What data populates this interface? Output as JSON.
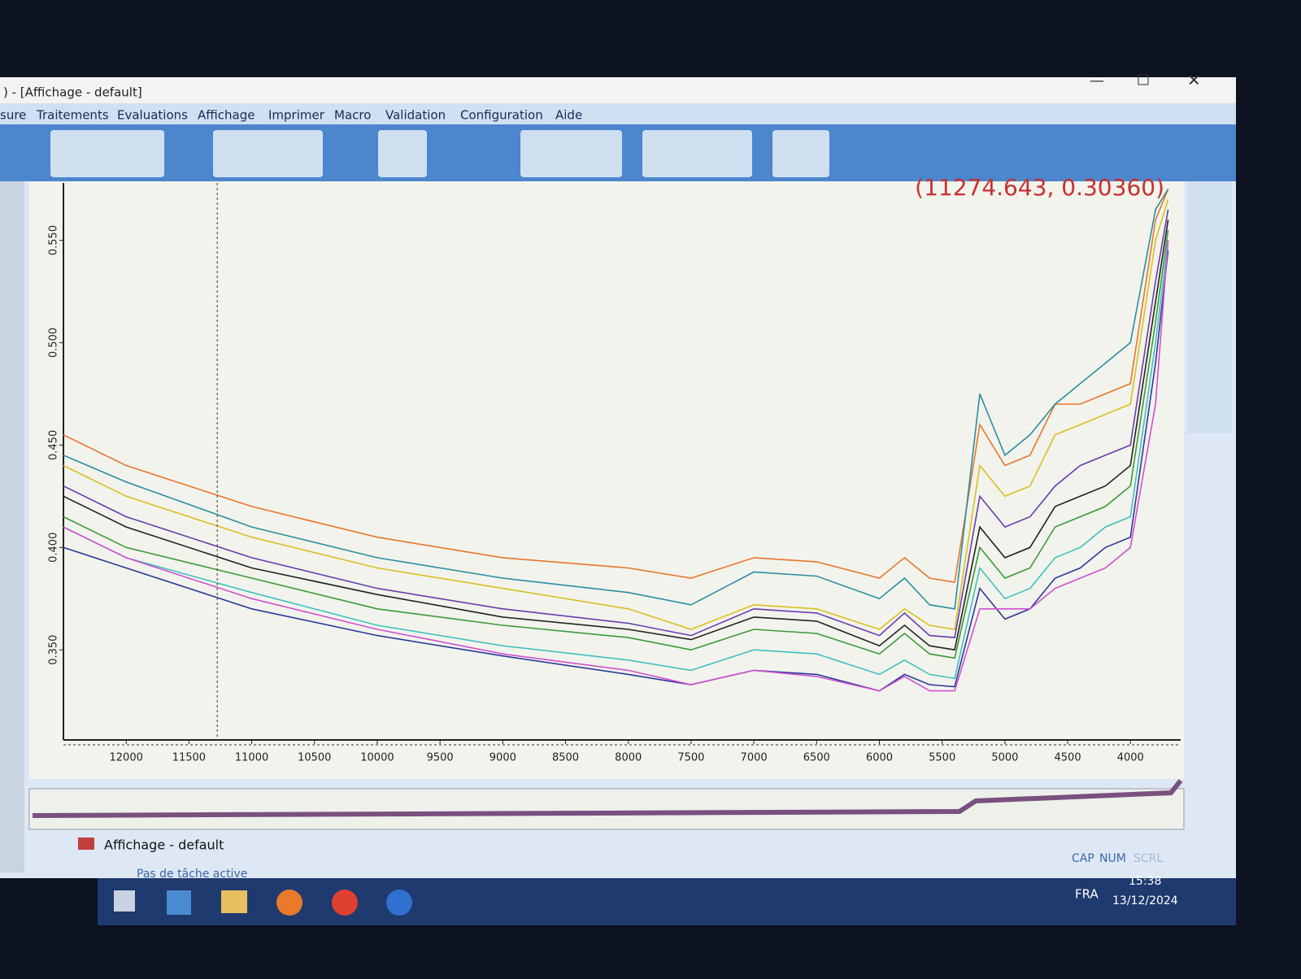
{
  "window": {
    "title": ") - [Affichage - default]"
  },
  "menu": [
    "sure",
    "Traitements",
    "Evaluations",
    "Affichage",
    "Imprimer",
    "Macro",
    "Validation",
    "Configuration",
    "Aide"
  ],
  "chart_data": {
    "type": "line",
    "readout": "(11274.643, 0.30360)",
    "cursor_x": 11274.643,
    "cursor_y": 0.3036,
    "x": [
      12500,
      12000,
      11000,
      10000,
      9000,
      8000,
      7500,
      7000,
      6500,
      6000,
      5800,
      5600,
      5400,
      5200,
      5000,
      4800,
      4600,
      4400,
      4200,
      4000,
      3800,
      3700
    ],
    "xlim": [
      12500,
      3600
    ],
    "xticks": [
      12000,
      11500,
      11000,
      10500,
      10000,
      9500,
      9000,
      8500,
      8000,
      7500,
      7000,
      6500,
      6000,
      5500,
      5000,
      4500,
      4000
    ],
    "ylim": [
      0.306,
      0.578
    ],
    "yticks": [
      {
        "value": 0.35,
        "label": "0.350"
      },
      {
        "value": 0.4,
        "label": "0.400"
      },
      {
        "value": 0.45,
        "label": "0.450"
      },
      {
        "value": 0.5,
        "label": "0.500"
      },
      {
        "value": 0.55,
        "label": "0.550"
      }
    ],
    "series": [
      {
        "color": "#e8762c",
        "values": [
          0.455,
          0.44,
          0.42,
          0.405,
          0.395,
          0.39,
          0.385,
          0.395,
          0.393,
          0.385,
          0.395,
          0.385,
          0.383,
          0.46,
          0.44,
          0.445,
          0.47,
          0.47,
          0.475,
          0.48,
          0.56,
          0.575
        ]
      },
      {
        "color": "#2a8fa0",
        "values": [
          0.445,
          0.432,
          0.41,
          0.395,
          0.385,
          0.378,
          0.372,
          0.388,
          0.386,
          0.375,
          0.385,
          0.372,
          0.37,
          0.475,
          0.445,
          0.455,
          0.47,
          0.48,
          0.49,
          0.5,
          0.565,
          0.575
        ]
      },
      {
        "color": "#d8c020",
        "values": [
          0.44,
          0.425,
          0.405,
          0.39,
          0.38,
          0.37,
          0.36,
          0.372,
          0.37,
          0.36,
          0.37,
          0.362,
          0.36,
          0.44,
          0.425,
          0.43,
          0.455,
          0.46,
          0.465,
          0.47,
          0.55,
          0.57
        ]
      },
      {
        "color": "#6a3cb0",
        "values": [
          0.43,
          0.415,
          0.395,
          0.38,
          0.37,
          0.363,
          0.357,
          0.37,
          0.368,
          0.357,
          0.368,
          0.357,
          0.356,
          0.425,
          0.41,
          0.415,
          0.43,
          0.44,
          0.445,
          0.45,
          0.53,
          0.565
        ]
      },
      {
        "color": "#222222",
        "values": [
          0.425,
          0.41,
          0.39,
          0.377,
          0.366,
          0.36,
          0.355,
          0.366,
          0.364,
          0.352,
          0.362,
          0.352,
          0.35,
          0.41,
          0.395,
          0.4,
          0.42,
          0.425,
          0.43,
          0.44,
          0.52,
          0.56
        ]
      },
      {
        "color": "#3a9a3a",
        "values": [
          0.415,
          0.4,
          0.385,
          0.37,
          0.362,
          0.356,
          0.35,
          0.36,
          0.358,
          0.348,
          0.358,
          0.348,
          0.346,
          0.4,
          0.385,
          0.39,
          0.41,
          0.415,
          0.42,
          0.43,
          0.51,
          0.555
        ]
      },
      {
        "color": "#40c0c0",
        "values": [
          0.41,
          0.395,
          0.378,
          0.362,
          0.352,
          0.345,
          0.34,
          0.35,
          0.348,
          0.338,
          0.345,
          0.338,
          0.336,
          0.39,
          0.375,
          0.38,
          0.395,
          0.4,
          0.41,
          0.415,
          0.5,
          0.55
        ]
      },
      {
        "color": "#2a3a9a",
        "values": [
          0.4,
          0.39,
          0.37,
          0.357,
          0.347,
          0.338,
          0.333,
          0.34,
          0.338,
          0.33,
          0.338,
          0.333,
          0.332,
          0.38,
          0.365,
          0.37,
          0.385,
          0.39,
          0.4,
          0.405,
          0.49,
          0.545
        ]
      },
      {
        "color": "#d050d0",
        "values": [
          0.41,
          0.395,
          0.375,
          0.36,
          0.348,
          0.34,
          0.333,
          0.34,
          0.337,
          0.33,
          0.337,
          0.33,
          0.33,
          0.37,
          0.37,
          0.37,
          0.38,
          0.385,
          0.39,
          0.4,
          0.47,
          0.55
        ]
      }
    ]
  },
  "tab": "Affichage - default",
  "status": {
    "task": "Pas de tâche active",
    "cap": "CAP",
    "num": "NUM",
    "scrl": "SCRL"
  },
  "taskbar": {
    "lang": "FRA",
    "time": "15:38",
    "date": "13/12/2024"
  }
}
